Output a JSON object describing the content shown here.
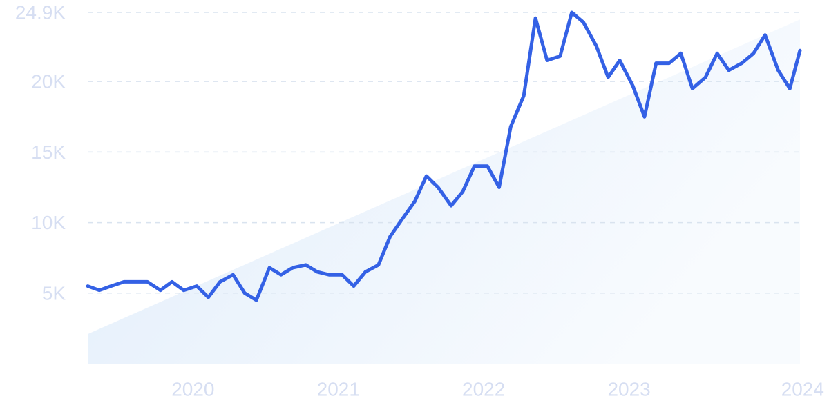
{
  "chart_data": {
    "type": "line",
    "title": "",
    "xlabel": "",
    "ylabel": "",
    "grid": "horizontal dashed",
    "ylim": [
      0,
      24900
    ],
    "y_ticks": [
      {
        "value": 5000,
        "label": "5K"
      },
      {
        "value": 10000,
        "label": "10K"
      },
      {
        "value": 15000,
        "label": "15K"
      },
      {
        "value": 20000,
        "label": "20K"
      },
      {
        "value": 24900,
        "label": "24.9K"
      }
    ],
    "x_ticks": [
      {
        "value": 2020.0,
        "label": "2020"
      },
      {
        "value": 2021.0,
        "label": "2021"
      },
      {
        "value": 2022.0,
        "label": "2022"
      },
      {
        "value": 2023.0,
        "label": "2023"
      },
      {
        "value": 2024.0,
        "label": "2024"
      }
    ],
    "xlim": [
      2019.1,
      2024.0
    ],
    "trend": {
      "x": [
        2019.1,
        2024.0
      ],
      "y": [
        2100,
        24400
      ]
    },
    "series": [
      {
        "x": [
          2019.1,
          2019.18,
          2019.26,
          2019.35,
          2019.43,
          2019.51,
          2019.6,
          2019.68,
          2019.76,
          2019.85,
          2019.93,
          2020.01,
          2020.1,
          2020.18,
          2020.26,
          2020.35,
          2020.43,
          2020.51,
          2020.6,
          2020.68,
          2020.76,
          2020.85,
          2020.93,
          2021.01,
          2021.1,
          2021.18,
          2021.26,
          2021.35,
          2021.43,
          2021.51,
          2021.6,
          2021.68,
          2021.76,
          2021.85,
          2021.93,
          2022.01,
          2022.1,
          2022.18,
          2022.26,
          2022.35,
          2022.43,
          2022.51,
          2022.6,
          2022.68,
          2022.76,
          2022.85,
          2022.93,
          2023.01,
          2023.1,
          2023.18,
          2023.26,
          2023.35,
          2023.43,
          2023.51,
          2023.6,
          2023.68,
          2023.76,
          2023.85,
          2023.93,
          2024.0
        ],
        "y": [
          5500,
          5200,
          5500,
          5800,
          5800,
          5800,
          5200,
          5800,
          5200,
          5500,
          4700,
          5800,
          6300,
          5000,
          4500,
          6800,
          6300,
          6800,
          7000,
          6500,
          6300,
          6300,
          5500,
          6500,
          7000,
          9000,
          10200,
          11500,
          13300,
          12500,
          11200,
          12200,
          14000,
          14000,
          12500,
          16800,
          19000,
          24500,
          21500,
          21800,
          24900,
          24200,
          22500,
          20300,
          21500,
          19700,
          17500,
          21300,
          21300,
          22000,
          19500,
          20300,
          22000,
          20800,
          21300,
          22000,
          23300,
          20800,
          19500,
          22200
        ]
      }
    ],
    "colors": {
      "line": "#3461e5",
      "tick_text": "#d6def2",
      "grid": "#d9e3ef",
      "area_start": "#e1edfb",
      "area_end": "#f8fbfe"
    }
  }
}
